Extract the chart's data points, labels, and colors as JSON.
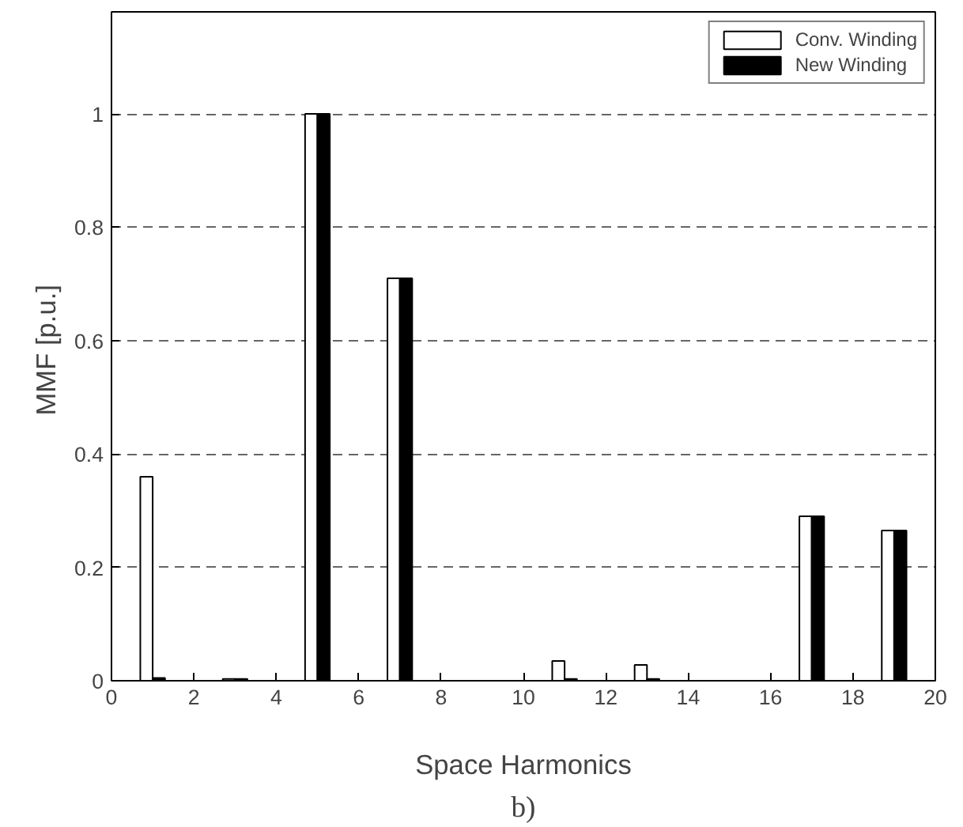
{
  "chart_data": {
    "type": "bar",
    "x": [
      1,
      3,
      5,
      7,
      11,
      13,
      17,
      19
    ],
    "series": [
      {
        "name": "Conv. Winding",
        "color": "#ffffff",
        "values": [
          0.36,
          0.003,
          1.0,
          0.71,
          0.035,
          0.028,
          0.29,
          0.265
        ]
      },
      {
        "name": "New Winding",
        "color": "#000000",
        "values": [
          0.005,
          0.003,
          1.0,
          0.71,
          0.003,
          0.003,
          0.29,
          0.265
        ]
      }
    ],
    "xlabel": "Space Harmonics",
    "ylabel": "MMF  [p.u.]",
    "xlim": [
      0,
      20
    ],
    "ylim": [
      0,
      1.18
    ],
    "xticks": [
      0,
      2,
      4,
      6,
      8,
      10,
      12,
      14,
      16,
      18,
      20
    ],
    "yticks": [
      0,
      0.2,
      0.4,
      0.6,
      0.8,
      1
    ],
    "grid": "y",
    "legend": "top right",
    "annotations": [
      "b)"
    ]
  }
}
